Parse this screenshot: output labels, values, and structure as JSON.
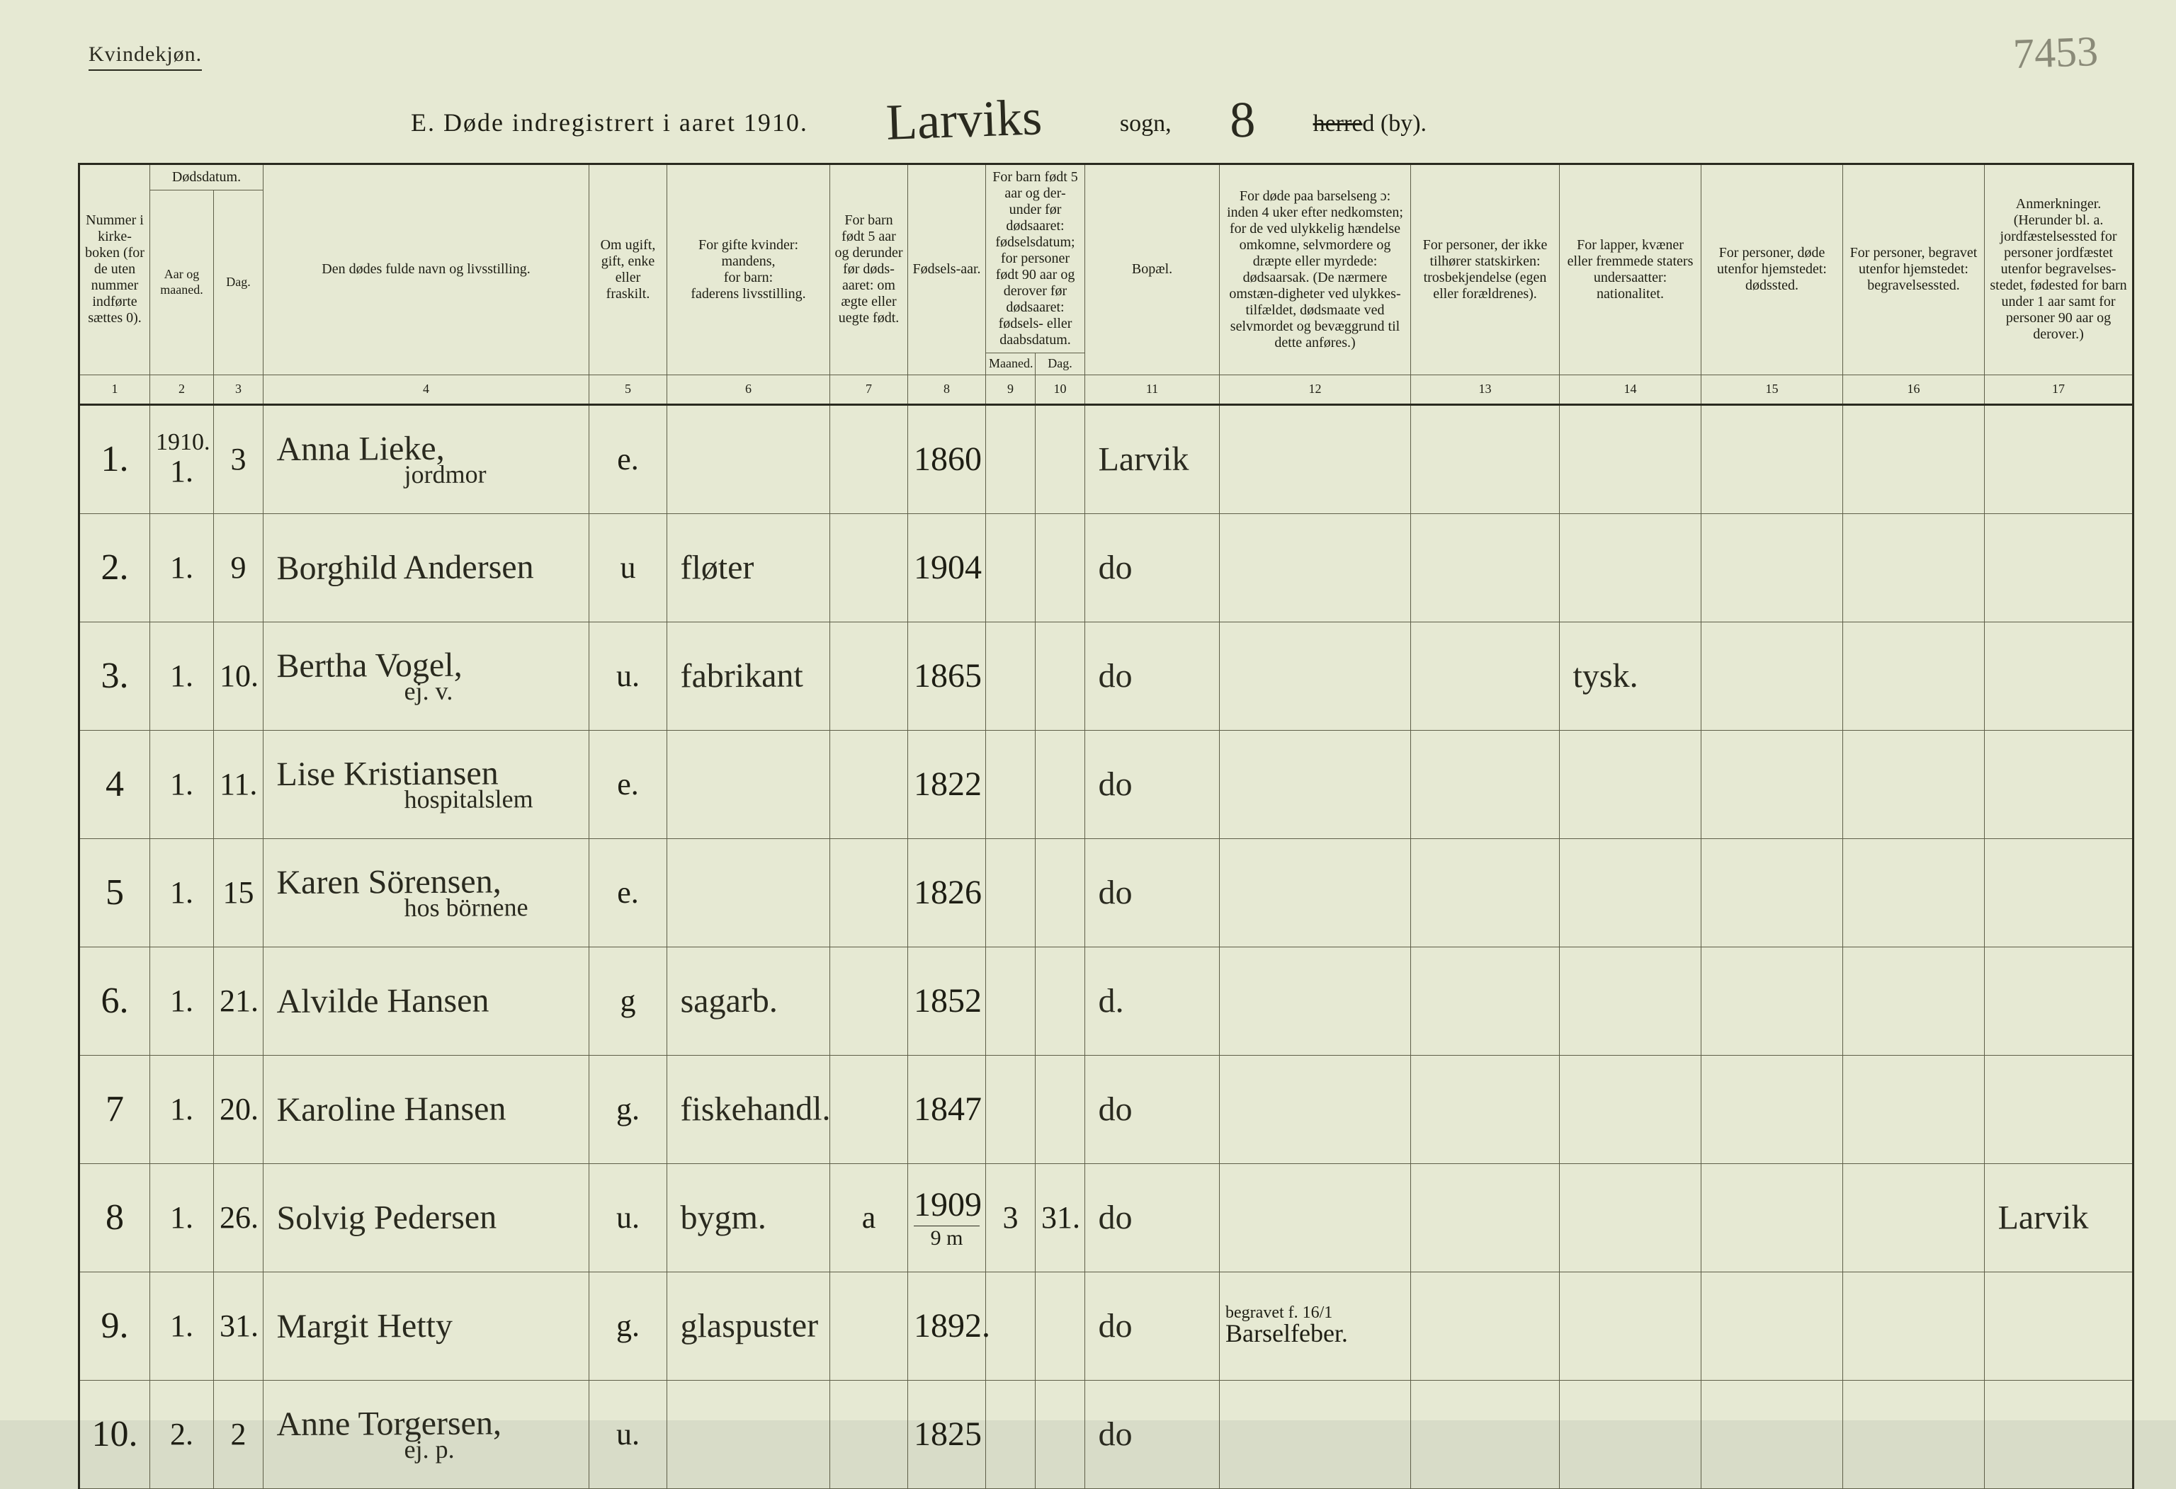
{
  "page": {
    "top_label": "Kvindekjøn.",
    "penciled_number": "7453",
    "title_prefix": "E.  Døde indregistrert i aaret 191",
    "title_year_suffix": "0",
    "parish_script": "Larviks",
    "sogn_label": "sogn,",
    "district_script": "8",
    "herred_struck": "herre",
    "herred_tail": "d (by).",
    "background_color": "#e6e9d3",
    "border_color": "#2a2a1f"
  },
  "columns": {
    "c1": {
      "num": "1",
      "label": "Nummer i kirke-boken (for de uten nummer indførte sættes 0)."
    },
    "c2g": {
      "label": "Dødsdatum."
    },
    "c2": {
      "num": "2",
      "label": "Aar og maaned."
    },
    "c3": {
      "num": "3",
      "label": "Dag."
    },
    "c4": {
      "num": "4",
      "label": "Den dødes fulde navn og livsstilling."
    },
    "c5": {
      "num": "5",
      "label": "Om ugift, gift, enke eller fraskilt."
    },
    "c6": {
      "num": "6",
      "label": "For gifte kvinder:\nmandens,\nfor barn:\nfaderens livsstilling."
    },
    "c7": {
      "num": "7",
      "label": "For barn født 5 aar og derunder før døds-aaret: om ægte eller uegte født."
    },
    "c8": {
      "num": "8",
      "label": "Fødsels-aar."
    },
    "c9g": {
      "label": "For barn født 5 aar og der-under før dødsaaret: fødselsdatum; for personer født 90 aar og derover før dødsaaret: fødsels- eller daabsdatum."
    },
    "c9a": {
      "num": "9",
      "label": "Maaned."
    },
    "c9b": {
      "num": "10",
      "label": "Dag."
    },
    "c11": {
      "num": "11",
      "label": "Bopæl."
    },
    "c12": {
      "num": "12",
      "label": "For døde paa barselseng ɔ: inden 4 uker efter nedkomsten; for de ved ulykkelig hændelse omkomne, selvmordere og dræpte eller myrdede: dødsaarsak. (De nærmere omstæn-digheter ved ulykkes-tilfældet, dødsmaate ved selvmordet og bevæggrund til dette anføres.)"
    },
    "c13": {
      "num": "13",
      "label": "For personer, der ikke tilhører statskirken: trosbekjendelse (egen eller forældrenes)."
    },
    "c14": {
      "num": "14",
      "label": "For lapper, kvæner eller fremmede staters undersaatter: nationalitet."
    },
    "c15": {
      "num": "15",
      "label": "For personer, døde utenfor hjemstedet: dødssted."
    },
    "c16": {
      "num": "16",
      "label": "For personer, begravet utenfor hjemstedet: begravelsessted."
    },
    "c17": {
      "num": "17",
      "label": "Anmerkninger. (Herunder bl. a. jordfæstelsessted for personer jordfæstet utenfor begravelses-stedet, fødested for barn under 1 aar samt for personer 90 aar og derover.)"
    }
  },
  "year_header": "1910",
  "rows": [
    {
      "idx": "1.",
      "month": "1.",
      "day": "3",
      "name": "Anna Lieke,",
      "name_sub": "jordmor",
      "status": "e.",
      "occupation": "",
      "c7": "",
      "birth": "1860",
      "c9a": "",
      "c9b": "",
      "residence": "Larvik",
      "c12": "",
      "c13": "",
      "c14": "",
      "c15": "",
      "c16": "",
      "c17": ""
    },
    {
      "idx": "2.",
      "month": "1.",
      "day": "9",
      "name": "Borghild Andersen",
      "name_sub": "",
      "status": "u",
      "occupation": "fløter",
      "c7": "",
      "birth": "1904",
      "c9a": "",
      "c9b": "",
      "residence": "do",
      "c12": "",
      "c13": "",
      "c14": "",
      "c15": "",
      "c16": "",
      "c17": ""
    },
    {
      "idx": "3.",
      "month": "1.",
      "day": "10.",
      "name": "Bertha Vogel,",
      "name_sub": "ej. v.",
      "status": "u.",
      "occupation": "fabrikant",
      "c7": "",
      "birth": "1865",
      "c9a": "",
      "c9b": "",
      "residence": "do",
      "c12": "",
      "c13": "",
      "c14": "tysk.",
      "c15": "",
      "c16": "",
      "c17": ""
    },
    {
      "idx": "4",
      "month": "1.",
      "day": "11.",
      "name": "Lise Kristiansen",
      "name_sub": "hospitalslem",
      "status": "e.",
      "occupation": "",
      "c7": "",
      "birth": "1822",
      "c9a": "",
      "c9b": "",
      "residence": "do",
      "c12": "",
      "c13": "",
      "c14": "",
      "c15": "",
      "c16": "",
      "c17": ""
    },
    {
      "idx": "5",
      "month": "1.",
      "day": "15",
      "name": "Karen Sörensen,",
      "name_sub": "hos börnene",
      "status": "e.",
      "occupation": "",
      "c7": "",
      "birth": "1826",
      "c9a": "",
      "c9b": "",
      "residence": "do",
      "c12": "",
      "c13": "",
      "c14": "",
      "c15": "",
      "c16": "",
      "c17": ""
    },
    {
      "idx": "6.",
      "month": "1.",
      "day": "21.",
      "name": "Alvilde Hansen",
      "name_sub": "",
      "status": "g",
      "occupation": "sagarb.",
      "c7": "",
      "birth": "1852",
      "c9a": "",
      "c9b": "",
      "residence": "d.",
      "c12": "",
      "c13": "",
      "c14": "",
      "c15": "",
      "c16": "",
      "c17": ""
    },
    {
      "idx": "7",
      "month": "1.",
      "day": "20.",
      "name": "Karoline Hansen",
      "name_sub": "",
      "status": "g.",
      "occupation": "fiskehandl.",
      "c7": "",
      "birth": "1847",
      "c9a": "",
      "c9b": "",
      "residence": "do",
      "c12": "",
      "c13": "",
      "c14": "",
      "c15": "",
      "c16": "",
      "c17": ""
    },
    {
      "idx": "8",
      "month": "1.",
      "day": "26.",
      "name": "Solvig Pedersen",
      "name_sub": "",
      "status": "u.",
      "occupation": "bygm.",
      "c7": "a",
      "birth": "1909",
      "birth_sub": "9 m",
      "c9a": "3",
      "c9b": "31.",
      "residence": "do",
      "c12": "",
      "c13": "",
      "c14": "",
      "c15": "",
      "c16": "",
      "c17": "Larvik"
    },
    {
      "idx": "9.",
      "month": "1.",
      "day": "31.",
      "name": "Margit Hetty",
      "name_sub": "",
      "status": "g.",
      "occupation": "glaspuster",
      "c7": "",
      "birth": "1892.",
      "c9a": "",
      "c9b": "",
      "residence": "do",
      "c12_tiny": "begravet f. 16/1",
      "c12": "Barselfeber.",
      "c13": "",
      "c14": "",
      "c15": "",
      "c16": "",
      "c17": ""
    },
    {
      "idx": "10.",
      "month": "2.",
      "day": "2",
      "name": "Anne Torgersen,",
      "name_sub": "ej. p.",
      "status": "u.",
      "occupation": "",
      "c7": "",
      "birth": "1825",
      "c9a": "",
      "c9b": "",
      "residence": "do",
      "c12": "",
      "c13": "",
      "c14": "",
      "c15": "",
      "c16": "",
      "c17": ""
    }
  ]
}
